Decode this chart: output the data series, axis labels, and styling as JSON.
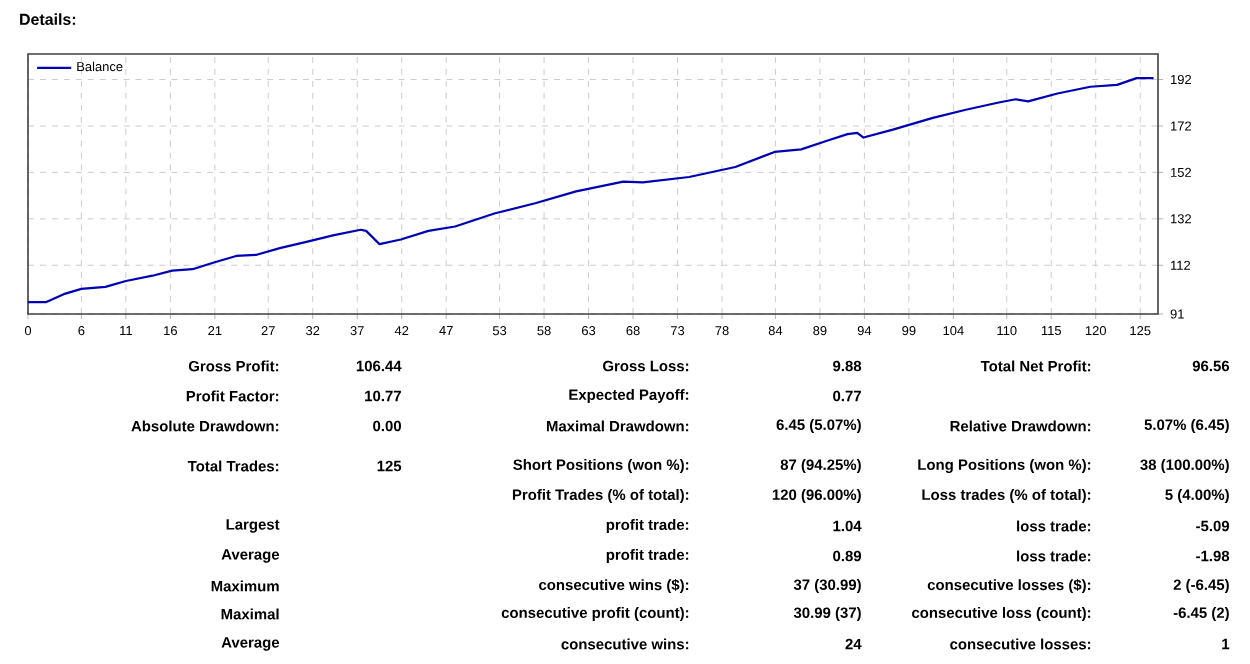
{
  "chart_data": [
    {
      "type": "line",
      "title": "Details:",
      "legend": "top left",
      "grid": true,
      "xlim": [
        0,
        127
      ],
      "ylim": [
        91,
        203
      ],
      "xticks": [
        0,
        6,
        11,
        16,
        21,
        27,
        32,
        37,
        42,
        47,
        53,
        58,
        63,
        68,
        73,
        78,
        84,
        89,
        94,
        99,
        104,
        110,
        115,
        120,
        125
      ],
      "yticks": [
        91,
        112,
        132,
        152,
        172,
        192
      ],
      "x": [
        0,
        2,
        4.2,
        6,
        8.7,
        11,
        14,
        16.2,
        18.5,
        20.8,
        23.4,
        25.7,
        28.3,
        31.4,
        34.4,
        37.4,
        38,
        39.5,
        41.9,
        45,
        48,
        52.5,
        57,
        61.6,
        66.9,
        69.1,
        74.3,
        79.5,
        83.9,
        86.9,
        89.8,
        92.1,
        93.2,
        93.9,
        97.2,
        101.7,
        105.4,
        109.1,
        111,
        112.4,
        115.7,
        119.4,
        122.4,
        124.6,
        126.5
      ],
      "series": [
        {
          "name": "Balance",
          "color": "#0000b4",
          "values": [
            96.1,
            96.1,
            99.8,
            101.8,
            102.7,
            105.2,
            107.5,
            109.7,
            110.3,
            113.1,
            116,
            116.5,
            119.4,
            122.2,
            125,
            127.3,
            126.8,
            121.1,
            123.1,
            126.8,
            128.7,
            134.4,
            138.7,
            143.8,
            148,
            147.7,
            150,
            154.3,
            160.8,
            161.9,
            165.6,
            168.5,
            169,
            167,
            170.4,
            175.5,
            179,
            182.1,
            183.5,
            182.6,
            186,
            188.9,
            189.7,
            192.6,
            192.6
          ]
        }
      ]
    },
    {
      "type": "other",
      "annotations": [
        "Gross Profit:",
        "106.44",
        "Gross Loss:",
        "9.88",
        "Total Net Profit:",
        "96.56",
        "Profit Factor:",
        "10.77",
        "Expected Payoff:",
        "0.77",
        "Absolute Drawdown:",
        "0.00",
        "Maximal Drawdown:",
        "6.45 (5.07%)",
        "Relative Drawdown:",
        "5.07% (6.45)",
        "Total Trades:",
        "125",
        "Short Positions (won %):",
        "87 (94.25%)",
        "Long Positions (won %):",
        "38 (100.00%)",
        "Profit Trades (% of total):",
        "120 (96.00%)",
        "Loss trades (% of total):",
        "5 (4.00%)",
        "Largest",
        "profit trade:",
        "1.04",
        "loss trade:",
        "-5.09",
        "Average",
        "profit trade:",
        "0.89",
        "loss trade:",
        "-1.98",
        "Maximum",
        "consecutive wins ($):",
        "37 (30.99)",
        "consecutive losses ($):",
        "2 (-6.45)",
        "Maximal",
        "consecutive profit (count):",
        "30.99 (37)",
        "consecutive loss (count):",
        "-6.45 (2)",
        "Average",
        "consecutive wins:",
        "24",
        "consecutive losses:",
        "1"
      ]
    }
  ]
}
